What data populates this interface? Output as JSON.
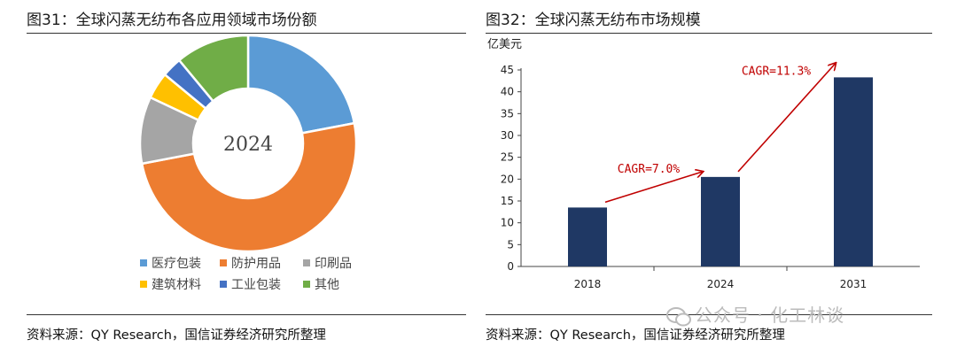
{
  "left": {
    "title": "图31：全球闪蒸无纺布各应用领域市场份额",
    "source": "资料来源：QY Research，国信证券经济研究所整理"
  },
  "right": {
    "title": "图32：全球闪蒸无纺布市场规模",
    "source": "资料来源：QY Research，国信证券经济研究所整理"
  },
  "watermark": "公众号 · 化工林谈",
  "chart_data": [
    {
      "type": "pie",
      "center_label": "2024",
      "categories": [
        "医疗包装",
        "防护用品",
        "印刷品",
        "建筑材料",
        "工业包装",
        "其他"
      ],
      "values": [
        22,
        50,
        10,
        4,
        3,
        11
      ],
      "colors": [
        "#5b9bd5",
        "#ed7d31",
        "#a5a5a5",
        "#ffc000",
        "#4472c4",
        "#70ad47"
      ],
      "legend_position": "bottom"
    },
    {
      "type": "bar",
      "categories": [
        "2018",
        "2024",
        "2031"
      ],
      "values": [
        13.5,
        20.5,
        43.3
      ],
      "ylabel": "亿美元",
      "ylim": [
        0,
        45
      ],
      "yticks": [
        0,
        5,
        10,
        15,
        20,
        25,
        30,
        35,
        40,
        45
      ],
      "bar_color": "#1f3864",
      "grid": false,
      "annotations": [
        {
          "text": "CAGR=7.0%",
          "from": "2018",
          "to": "2024"
        },
        {
          "text": "CAGR=11.3%",
          "from": "2024",
          "to": "2031"
        }
      ],
      "annotation_color": "#c00000"
    }
  ]
}
